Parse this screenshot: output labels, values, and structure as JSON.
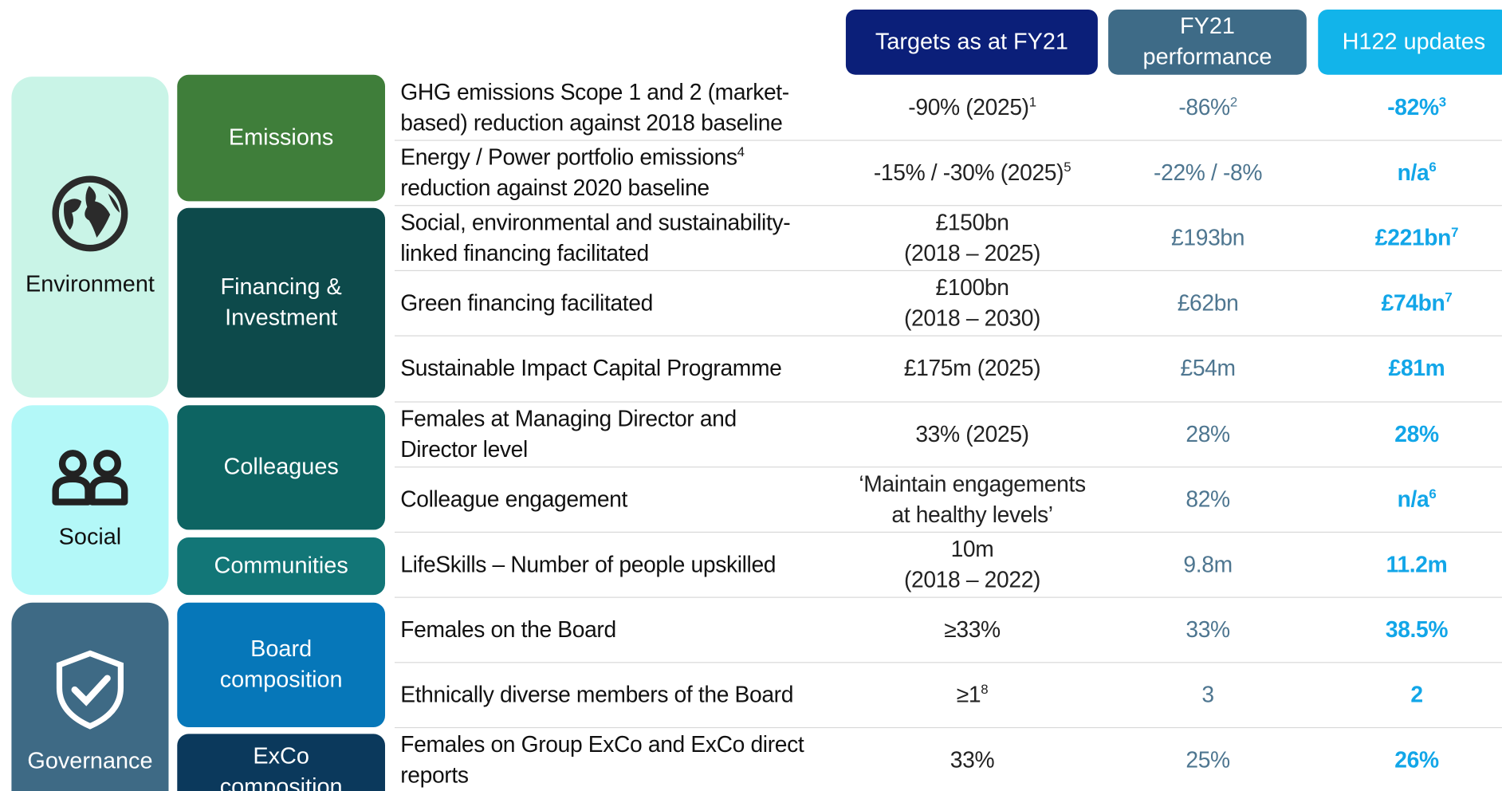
{
  "header": {
    "columns": [
      [
        "Targets as at FY21"
      ],
      [
        "FY21",
        "performance"
      ],
      [
        "H122 updates"
      ]
    ]
  },
  "categories": [
    "Environment",
    "Social",
    "Governance"
  ],
  "subcategories": [
    [
      "Emissions"
    ],
    [
      "Financing &",
      "Investment"
    ],
    [
      "Colleagues"
    ],
    [
      "Communities"
    ],
    [
      "Board",
      "composition"
    ],
    [
      "ExCo",
      "composition"
    ]
  ],
  "rows": [
    {
      "description": [
        "GHG emissions Scope 1 and 2 (market-",
        "based) reduction against 2018 baseline"
      ],
      "target": [
        {
          "text": "-90% (2025)",
          "sup": "1"
        }
      ],
      "performance": [
        {
          "text": "-86%",
          "sup": "2"
        }
      ],
      "update": [
        {
          "text": "-82%",
          "sup": "3"
        }
      ]
    },
    {
      "description": [
        {
          "text": "Energy / Power portfolio emissions",
          "sup": "4"
        },
        "reduction against 2020 baseline"
      ],
      "target": [
        {
          "text": "-15% / -30% (2025)",
          "sup": "5"
        }
      ],
      "performance": [
        "-22% / -8%"
      ],
      "update": [
        {
          "text": "n/a",
          "sup": "6"
        }
      ]
    },
    {
      "description": [
        "Social, environmental and sustainability-",
        "linked financing facilitated"
      ],
      "target": [
        "£150bn",
        "(2018 – 2025)"
      ],
      "performance": [
        "£193bn"
      ],
      "update": [
        {
          "text": "£221bn",
          "sup": "7"
        }
      ]
    },
    {
      "description": [
        "Green financing facilitated"
      ],
      "target": [
        "£100bn",
        "(2018 – 2030)"
      ],
      "performance": [
        "£62bn"
      ],
      "update": [
        {
          "text": "£74bn",
          "sup": "7"
        }
      ]
    },
    {
      "description": [
        "Sustainable Impact Capital Programme"
      ],
      "target": [
        "£175m (2025)"
      ],
      "performance": [
        "£54m"
      ],
      "update": [
        "£81m"
      ]
    },
    {
      "description": [
        "Females at Managing Director and",
        "Director level"
      ],
      "target": [
        "33% (2025)"
      ],
      "performance": [
        "28%"
      ],
      "update": [
        "28%"
      ]
    },
    {
      "description": [
        "Colleague engagement"
      ],
      "target": [
        "‘Maintain engagements",
        "at healthy levels’"
      ],
      "performance": [
        "82%"
      ],
      "update": [
        {
          "text": "n/a",
          "sup": "6"
        }
      ]
    },
    {
      "description": [
        "LifeSkills – Number of people upskilled"
      ],
      "target": [
        "10m",
        "(2018 – 2022)"
      ],
      "performance": [
        "9.8m"
      ],
      "update": [
        "11.2m"
      ]
    },
    {
      "description": [
        "Females on the Board"
      ],
      "target": [
        "≥33%"
      ],
      "performance": [
        "33%"
      ],
      "update": [
        "38.5%"
      ]
    },
    {
      "description": [
        "Ethnically diverse members of the Board"
      ],
      "target": [
        {
          "text": "≥1",
          "sup": "8"
        }
      ],
      "performance": [
        "3"
      ],
      "update": [
        "2"
      ]
    },
    {
      "description": [
        "Females on Group ExCo and ExCo direct",
        "reports"
      ],
      "target": [
        "33%"
      ],
      "performance": [
        "25%"
      ],
      "update": [
        "26%"
      ]
    }
  ]
}
